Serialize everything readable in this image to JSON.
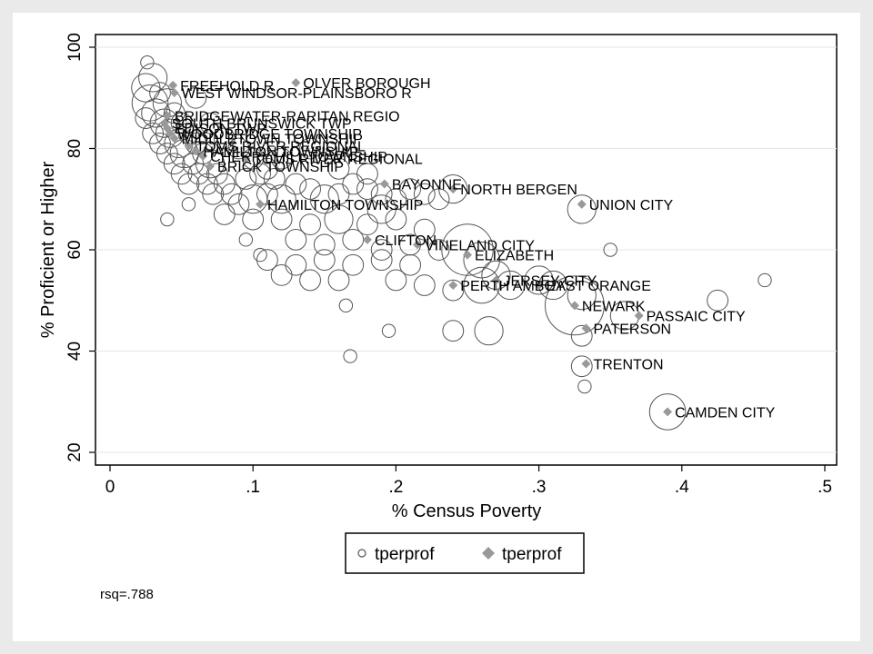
{
  "chart_data": {
    "type": "scatter",
    "title": "",
    "xlabel": "% Census Poverty",
    "ylabel": "% Proficient or Higher",
    "xlim": [
      0,
      0.5
    ],
    "ylim": [
      20,
      100
    ],
    "xticks": [
      {
        "value": 0,
        "label": "0"
      },
      {
        "value": 0.1,
        "label": ".1"
      },
      {
        "value": 0.2,
        "label": ".2"
      },
      {
        "value": 0.3,
        "label": ".3"
      },
      {
        "value": 0.4,
        "label": ".4"
      },
      {
        "value": 0.5,
        "label": ".5"
      }
    ],
    "yticks": [
      {
        "value": 20,
        "label": "20"
      },
      {
        "value": 40,
        "label": "40"
      },
      {
        "value": 60,
        "label": "60"
      },
      {
        "value": 80,
        "label": "80"
      },
      {
        "value": 100,
        "label": "100"
      }
    ],
    "grid": true,
    "legend_position": "bottom",
    "legend": [
      {
        "label": "tperprof",
        "marker": "hollow-circle"
      },
      {
        "label": "tperprof",
        "marker": "diamond"
      }
    ],
    "note": "rsq=.788",
    "series": [
      {
        "name": "tperprof",
        "marker": "hollow-circle",
        "description": "weighted districts (circle size = enrollment)",
        "points": [
          {
            "x": 0.026,
            "y": 97,
            "w": 1
          },
          {
            "x": 0.03,
            "y": 94,
            "w": 3
          },
          {
            "x": 0.025,
            "y": 92,
            "w": 3
          },
          {
            "x": 0.035,
            "y": 91,
            "w": 2
          },
          {
            "x": 0.028,
            "y": 89,
            "w": 4
          },
          {
            "x": 0.04,
            "y": 89,
            "w": 3
          },
          {
            "x": 0.032,
            "y": 87,
            "w": 3
          },
          {
            "x": 0.045,
            "y": 87,
            "w": 2
          },
          {
            "x": 0.025,
            "y": 86,
            "w": 2
          },
          {
            "x": 0.038,
            "y": 85,
            "w": 3
          },
          {
            "x": 0.05,
            "y": 85,
            "w": 2
          },
          {
            "x": 0.03,
            "y": 83,
            "w": 2
          },
          {
            "x": 0.042,
            "y": 83,
            "w": 3
          },
          {
            "x": 0.055,
            "y": 83,
            "w": 2
          },
          {
            "x": 0.035,
            "y": 81,
            "w": 2
          },
          {
            "x": 0.048,
            "y": 81,
            "w": 3
          },
          {
            "x": 0.06,
            "y": 81,
            "w": 2
          },
          {
            "x": 0.04,
            "y": 79,
            "w": 2
          },
          {
            "x": 0.052,
            "y": 79,
            "w": 3
          },
          {
            "x": 0.065,
            "y": 79,
            "w": 2
          },
          {
            "x": 0.045,
            "y": 77,
            "w": 2
          },
          {
            "x": 0.058,
            "y": 77,
            "w": 2
          },
          {
            "x": 0.07,
            "y": 77,
            "w": 3
          },
          {
            "x": 0.05,
            "y": 75,
            "w": 2
          },
          {
            "x": 0.062,
            "y": 75,
            "w": 2
          },
          {
            "x": 0.075,
            "y": 75,
            "w": 2
          },
          {
            "x": 0.055,
            "y": 73,
            "w": 2
          },
          {
            "x": 0.068,
            "y": 73,
            "w": 2
          },
          {
            "x": 0.08,
            "y": 73,
            "w": 2
          },
          {
            "x": 0.072,
            "y": 71,
            "w": 2
          },
          {
            "x": 0.085,
            "y": 71,
            "w": 2
          },
          {
            "x": 0.09,
            "y": 69,
            "w": 2
          },
          {
            "x": 0.1,
            "y": 70,
            "w": 3
          },
          {
            "x": 0.11,
            "y": 71,
            "w": 2
          },
          {
            "x": 0.12,
            "y": 70,
            "w": 3
          },
          {
            "x": 0.095,
            "y": 74,
            "w": 2
          },
          {
            "x": 0.105,
            "y": 75,
            "w": 2
          },
          {
            "x": 0.115,
            "y": 74,
            "w": 2
          },
          {
            "x": 0.13,
            "y": 73,
            "w": 2
          },
          {
            "x": 0.14,
            "y": 72,
            "w": 2
          },
          {
            "x": 0.15,
            "y": 70,
            "w": 3
          },
          {
            "x": 0.16,
            "y": 71,
            "w": 2
          },
          {
            "x": 0.17,
            "y": 73,
            "w": 2
          },
          {
            "x": 0.18,
            "y": 72,
            "w": 2
          },
          {
            "x": 0.19,
            "y": 71,
            "w": 2
          },
          {
            "x": 0.2,
            "y": 70,
            "w": 2
          },
          {
            "x": 0.21,
            "y": 72,
            "w": 2
          },
          {
            "x": 0.22,
            "y": 71,
            "w": 2
          },
          {
            "x": 0.23,
            "y": 70,
            "w": 2
          },
          {
            "x": 0.08,
            "y": 67,
            "w": 2
          },
          {
            "x": 0.1,
            "y": 66,
            "w": 2
          },
          {
            "x": 0.12,
            "y": 66,
            "w": 2
          },
          {
            "x": 0.14,
            "y": 65,
            "w": 2
          },
          {
            "x": 0.16,
            "y": 66,
            "w": 3
          },
          {
            "x": 0.18,
            "y": 65,
            "w": 2
          },
          {
            "x": 0.2,
            "y": 66,
            "w": 2
          },
          {
            "x": 0.22,
            "y": 64,
            "w": 2
          },
          {
            "x": 0.13,
            "y": 62,
            "w": 2
          },
          {
            "x": 0.15,
            "y": 61,
            "w": 2
          },
          {
            "x": 0.17,
            "y": 62,
            "w": 2
          },
          {
            "x": 0.19,
            "y": 60,
            "w": 2
          },
          {
            "x": 0.21,
            "y": 61,
            "w": 2
          },
          {
            "x": 0.23,
            "y": 60,
            "w": 2
          },
          {
            "x": 0.11,
            "y": 58,
            "w": 2
          },
          {
            "x": 0.13,
            "y": 57,
            "w": 2
          },
          {
            "x": 0.15,
            "y": 58,
            "w": 2
          },
          {
            "x": 0.17,
            "y": 57,
            "w": 2
          },
          {
            "x": 0.19,
            "y": 58,
            "w": 2
          },
          {
            "x": 0.21,
            "y": 57,
            "w": 2
          },
          {
            "x": 0.12,
            "y": 55,
            "w": 2
          },
          {
            "x": 0.14,
            "y": 54,
            "w": 2
          },
          {
            "x": 0.16,
            "y": 54,
            "w": 2
          },
          {
            "x": 0.2,
            "y": 54,
            "w": 2
          },
          {
            "x": 0.22,
            "y": 53,
            "w": 2
          },
          {
            "x": 0.24,
            "y": 52,
            "w": 2
          },
          {
            "x": 0.095,
            "y": 62,
            "w": 1
          },
          {
            "x": 0.105,
            "y": 59,
            "w": 1
          },
          {
            "x": 0.165,
            "y": 49,
            "w": 1
          },
          {
            "x": 0.19,
            "y": 68,
            "w": 3
          },
          {
            "x": 0.24,
            "y": 72,
            "w": 3
          },
          {
            "x": 0.25,
            "y": 60,
            "w": 6
          },
          {
            "x": 0.26,
            "y": 58,
            "w": 4
          },
          {
            "x": 0.27,
            "y": 55,
            "w": 3
          },
          {
            "x": 0.26,
            "y": 53,
            "w": 4
          },
          {
            "x": 0.28,
            "y": 53,
            "w": 3
          },
          {
            "x": 0.3,
            "y": 54,
            "w": 3
          },
          {
            "x": 0.31,
            "y": 53,
            "w": 3
          },
          {
            "x": 0.33,
            "y": 51,
            "w": 3
          },
          {
            "x": 0.325,
            "y": 49,
            "w": 7
          },
          {
            "x": 0.33,
            "y": 68,
            "w": 3
          },
          {
            "x": 0.36,
            "y": 47,
            "w": 3
          },
          {
            "x": 0.425,
            "y": 50,
            "w": 2
          },
          {
            "x": 0.24,
            "y": 44,
            "w": 2
          },
          {
            "x": 0.265,
            "y": 44,
            "w": 3
          },
          {
            "x": 0.33,
            "y": 43,
            "w": 2
          },
          {
            "x": 0.33,
            "y": 37,
            "w": 2
          },
          {
            "x": 0.332,
            "y": 33,
            "w": 1
          },
          {
            "x": 0.39,
            "y": 28,
            "w": 4
          },
          {
            "x": 0.458,
            "y": 54,
            "w": 1
          },
          {
            "x": 0.35,
            "y": 60,
            "w": 1
          },
          {
            "x": 0.195,
            "y": 44,
            "w": 1
          },
          {
            "x": 0.168,
            "y": 39,
            "w": 1
          },
          {
            "x": 0.04,
            "y": 66,
            "w": 1
          },
          {
            "x": 0.055,
            "y": 69,
            "w": 1
          },
          {
            "x": 0.12,
            "y": 78,
            "w": 2
          },
          {
            "x": 0.14,
            "y": 80,
            "w": 2
          },
          {
            "x": 0.16,
            "y": 76,
            "w": 2
          },
          {
            "x": 0.18,
            "y": 75,
            "w": 2
          },
          {
            "x": 0.06,
            "y": 90,
            "w": 2
          },
          {
            "x": 0.07,
            "y": 85,
            "w": 2
          },
          {
            "x": 0.08,
            "y": 82,
            "w": 2
          },
          {
            "x": 0.09,
            "y": 80,
            "w": 2
          },
          {
            "x": 0.1,
            "y": 78,
            "w": 2
          },
          {
            "x": 0.11,
            "y": 76,
            "w": 2
          }
        ]
      },
      {
        "name": "tperprof",
        "marker": "diamond",
        "description": "labeled large districts",
        "points": [
          {
            "x": 0.044,
            "y": 92.5,
            "label": "FREEHOLD R"
          },
          {
            "x": 0.13,
            "y": 93,
            "label": "OLVER BOROUGH"
          },
          {
            "x": 0.045,
            "y": 91,
            "label": "WEST WINDSOR-PLAINSBORO R"
          },
          {
            "x": 0.04,
            "y": 86.5,
            "label": "BRIDGEWATER-RARITAN REGIO"
          },
          {
            "x": 0.038,
            "y": 85,
            "label": "SOUTH BRUNSWICK TWP"
          },
          {
            "x": 0.04,
            "y": 84,
            "label": "EDISON TWP"
          },
          {
            "x": 0.042,
            "y": 83,
            "label": "WOODBRIDGE TOWNSHIP"
          },
          {
            "x": 0.045,
            "y": 82,
            "label": "MIDDLETOWN TOWNSHIP"
          },
          {
            "x": 0.055,
            "y": 80.5,
            "label": "TOMS RIVER REGIONAL"
          },
          {
            "x": 0.06,
            "y": 79.5,
            "label": "HAMILTON TOWNSHIP"
          },
          {
            "x": 0.065,
            "y": 78.5,
            "label": "CHERRY HILL TOWNSHIP"
          },
          {
            "x": 0.07,
            "y": 76.5,
            "label": "BRICK TOWNSHIP"
          },
          {
            "x": 0.095,
            "y": 78,
            "label": "TOMS RIVER REGIONAL"
          },
          {
            "x": 0.105,
            "y": 69,
            "label": "HAMILTON TOWNSHIP"
          },
          {
            "x": 0.192,
            "y": 73,
            "label": "BAYONNE"
          },
          {
            "x": 0.24,
            "y": 72,
            "label": "NORTH BERGEN"
          },
          {
            "x": 0.33,
            "y": 69,
            "label": "UNION CITY"
          },
          {
            "x": 0.18,
            "y": 62,
            "label": "CLIFTON"
          },
          {
            "x": 0.215,
            "y": 61,
            "label": "VINELAND CITY"
          },
          {
            "x": 0.25,
            "y": 59,
            "label": "ELIZABETH"
          },
          {
            "x": 0.24,
            "y": 53,
            "label": "PERTH AMBOY"
          },
          {
            "x": 0.27,
            "y": 54,
            "label": "JERSEY CITY"
          },
          {
            "x": 0.3,
            "y": 53,
            "label": "EAST ORANGE"
          },
          {
            "x": 0.325,
            "y": 49,
            "label": "NEWARK"
          },
          {
            "x": 0.37,
            "y": 47,
            "label": "PASSAIC CITY"
          },
          {
            "x": 0.333,
            "y": 44.5,
            "label": "PATERSON"
          },
          {
            "x": 0.333,
            "y": 37.5,
            "label": "TRENTON"
          },
          {
            "x": 0.39,
            "y": 28,
            "label": "CAMDEN CITY"
          }
        ]
      }
    ],
    "colors": {
      "circle_stroke": "#555555",
      "diamond_fill": "#999999",
      "frame_stroke": "#000000",
      "grid": "#e6e6e6",
      "outer_bg": "#eaeaea"
    }
  }
}
